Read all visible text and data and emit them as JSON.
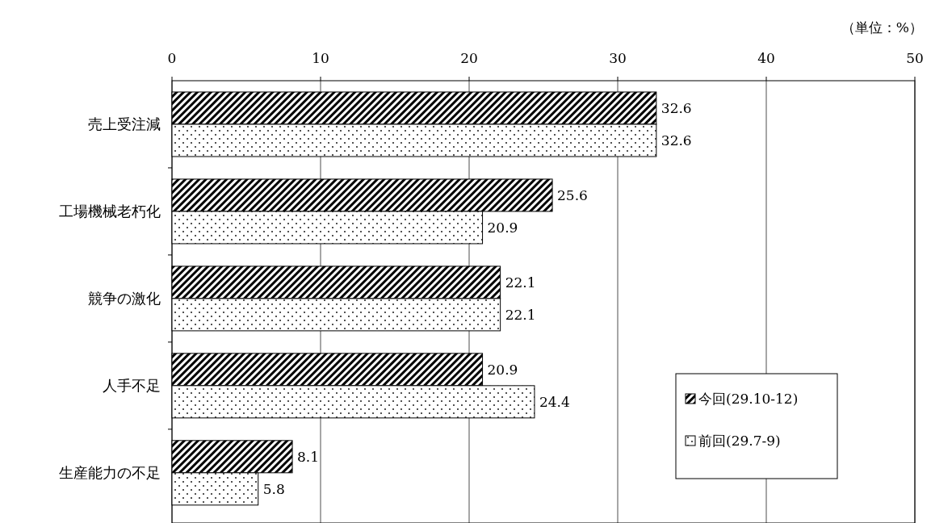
{
  "chart_data": {
    "type": "bar",
    "orientation": "horizontal",
    "categories": [
      "売上受注減",
      "工場機械老朽化",
      "競争の激化",
      "人手不足",
      "生産能力の不足"
    ],
    "series": [
      {
        "name": "今回(29.10-12)",
        "color": "#000000",
        "values": [
          32.6,
          25.6,
          22.1,
          20.9,
          8.1
        ]
      },
      {
        "name": "前回(29.7-9)",
        "color": "#000000",
        "values": [
          32.6,
          20.9,
          22.1,
          24.4,
          5.8
        ]
      }
    ],
    "xlim": [
      0,
      50
    ],
    "xticks": [
      0,
      10,
      20,
      30,
      40,
      50
    ],
    "grid": "x",
    "data_labels": true,
    "legend": "bottom right",
    "annotations": [
      "（単位：%）"
    ]
  }
}
